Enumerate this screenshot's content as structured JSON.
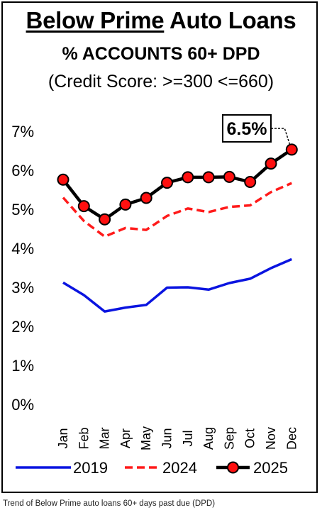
{
  "header": {
    "title_underlined": "Below Prime",
    "title_rest": " Auto Loans",
    "subtitle": "% ACCOUNTS 60+ DPD",
    "subtitle2": "(Credit Score: >=300 <=660)"
  },
  "caption": "Trend of Below Prime auto loans 60+ days past due (DPD)",
  "colors": {
    "s2019": "#0a14e0",
    "s2024": "#ff1a1a",
    "s2025_line": "#000000",
    "s2025_marker": "#ff1010"
  },
  "chart_data": {
    "type": "line",
    "title": "Below Prime Auto Loans",
    "subtitle": "% ACCOUNTS 60+ DPD (Credit Score: >=300 <=660)",
    "categories": [
      "Jan",
      "Feb",
      "Mar",
      "Apr",
      "May",
      "Jun",
      "Jul",
      "Aug",
      "Sep",
      "Oct",
      "Nov",
      "Dec"
    ],
    "ylim": [
      0,
      7
    ],
    "yticks": [
      "0%",
      "1%",
      "2%",
      "3%",
      "4%",
      "5%",
      "6%",
      "7%"
    ],
    "series": [
      {
        "name": "2019",
        "style": "solid",
        "values": [
          3.12,
          2.8,
          2.38,
          2.48,
          2.55,
          2.99,
          3.0,
          2.94,
          3.11,
          3.22,
          3.49,
          3.72
        ]
      },
      {
        "name": "2024",
        "style": "dashed",
        "values": [
          5.3,
          4.7,
          4.3,
          4.52,
          4.47,
          4.83,
          5.02,
          4.93,
          5.06,
          5.1,
          5.44,
          5.67
        ]
      },
      {
        "name": "2025",
        "style": "solid-markers",
        "values": [
          5.76,
          5.08,
          4.74,
          5.12,
          5.29,
          5.68,
          5.82,
          5.82,
          5.83,
          5.7,
          6.17,
          6.53
        ]
      }
    ],
    "annotation": {
      "text": "6.5%",
      "series": "2025",
      "category": "Dec"
    },
    "legend": {
      "placement": "bottom",
      "entries": [
        "2019",
        "2024",
        "2025"
      ]
    },
    "grid": false
  }
}
